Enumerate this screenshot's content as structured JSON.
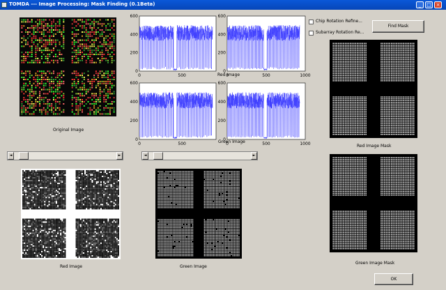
{
  "window": {
    "title": "TOMDA --- Image Processing: Mask Finding (0.1Beta)"
  },
  "panels": {
    "original": {
      "caption": "Original Image"
    },
    "red_small": {
      "caption": "Red Image"
    },
    "green_small": {
      "caption": "Green Image"
    },
    "red_large": {
      "caption": "Red Image"
    },
    "green_large": {
      "caption": "Green Image"
    },
    "red_mask": {
      "caption": "Red Image Mask"
    },
    "green_mask": {
      "caption": "Green Image Mask"
    }
  },
  "plots": {
    "ylim": [
      0,
      600
    ],
    "yticks": [
      "600",
      "400",
      "200",
      "0"
    ],
    "xticks_left": [
      "0",
      "500"
    ],
    "xticks_right": [
      "0",
      "500",
      "1000"
    ],
    "line_color": "#4040ff"
  },
  "controls": {
    "chip_rotation_label": "Chip Rotation Refine...",
    "subarray_rotation_label": "Subarray Rotation Re...",
    "find_mask_label": "Find Mask",
    "ok_label": "OK"
  },
  "sliders": {
    "red": {
      "value": 0.05
    },
    "green": {
      "value": 0.05
    }
  },
  "icons": {
    "app": "matlab-figure-icon",
    "minimize": "minimize-icon",
    "maximize": "maximize-icon",
    "close": "close-icon",
    "left": "arrow-left-icon",
    "right": "arrow-right-icon"
  }
}
